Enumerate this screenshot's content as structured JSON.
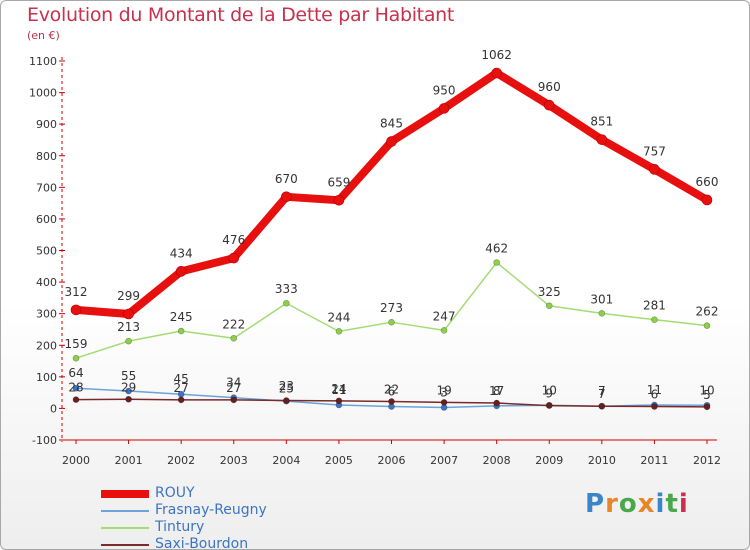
{
  "title": "Evolution du Montant de la Dette par Habitant",
  "unit": "(en €)",
  "logo": {
    "text": "Proxiti",
    "colors": [
      "#3a86c8",
      "#e8862a",
      "#4aa84a",
      "#e8862a",
      "#3a86c8",
      "#4aa84a",
      "#c8304d"
    ]
  },
  "chart_data": {
    "type": "line",
    "title": "Evolution du Montant de la Dette par Habitant",
    "ylabel": "(en €)",
    "xlabel": "",
    "x": [
      "2000",
      "2001",
      "2002",
      "2003",
      "2004",
      "2005",
      "2006",
      "2007",
      "2008",
      "2009",
      "2010",
      "2011",
      "2012"
    ],
    "ylim": [
      -100,
      1100
    ],
    "yticks": [
      -100,
      0,
      100,
      200,
      300,
      400,
      500,
      600,
      700,
      800,
      900,
      1000,
      1100
    ],
    "grid": false,
    "legend_position": "bottom-left",
    "series": [
      {
        "name": "ROUY",
        "color": "#e8100e",
        "marker": "#e8100e",
        "values": [
          312,
          299,
          434,
          476,
          670,
          659,
          845,
          950,
          1062,
          960,
          851,
          757,
          660
        ],
        "labels": [
          "312",
          "299",
          "434",
          "476",
          "670",
          "659",
          "845",
          "950",
          "1062",
          "960",
          "851",
          "757",
          "660"
        ]
      },
      {
        "name": "Frasnay-Reugny",
        "color": "#6aa4d8",
        "marker": "#3b74c8",
        "values": [
          64,
          55,
          45,
          34,
          23,
          11,
          6,
          3,
          8,
          10,
          7,
          11,
          10
        ],
        "labels": [
          "64",
          "55",
          "45",
          "34",
          "23",
          "11",
          "6",
          "3",
          "8",
          "10",
          "7",
          "11",
          "10"
        ]
      },
      {
        "name": "Tintury",
        "color": "#a4dc74",
        "marker": "#8cd048",
        "values": [
          159,
          213,
          245,
          222,
          333,
          244,
          273,
          247,
          462,
          325,
          301,
          281,
          262
        ],
        "labels": [
          "159",
          "213",
          "245",
          "222",
          "333",
          "244",
          "273",
          "247",
          "462",
          "325",
          "301",
          "281",
          "262"
        ]
      },
      {
        "name": "Saxi-Bourdon",
        "color": "#7a2a2a",
        "marker": "#6a1f1f",
        "values": [
          28,
          29,
          27,
          27,
          25,
          24,
          22,
          19,
          17,
          9,
          7,
          6,
          5
        ],
        "labels": [
          "28",
          "29",
          "27",
          "27",
          "25",
          "24",
          "22",
          "19",
          "17",
          "9",
          "7",
          "6",
          "5"
        ]
      }
    ]
  }
}
